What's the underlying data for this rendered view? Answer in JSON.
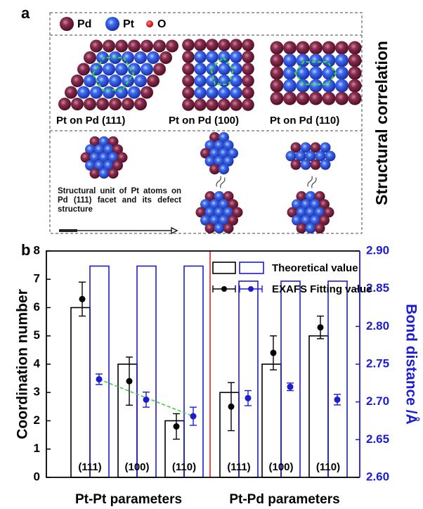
{
  "panel_a": {
    "label": "a",
    "legend": [
      "Pd",
      "Pt",
      "O"
    ],
    "facets": [
      "Pt on Pd (111)",
      "Pt on Pd (100)",
      "Pt on Pd (110)"
    ],
    "note": "Structural unit of Pt atoms on Pd (111) facet and its defect structure",
    "side_title": "Structural correlation"
  },
  "chart_data": {
    "type": "bar",
    "panel_label": "b",
    "categories": [
      "(111)",
      "(100)",
      "(110)",
      "(111)",
      "(100)",
      "(110)"
    ],
    "groups": [
      "Pt-Pt parameters",
      "Pt-Pd parameters"
    ],
    "y_label": "Coordination number",
    "y2_label": "Bond distance /Å",
    "ylim": [
      0,
      8
    ],
    "yticks": [
      0,
      1,
      2,
      3,
      4,
      5,
      6,
      7,
      8
    ],
    "y2lim": [
      2.6,
      2.9
    ],
    "y2ticks": [
      {
        "value": 2.6,
        "label": "2.60"
      },
      {
        "value": 2.65,
        "label": "2.65"
      },
      {
        "value": 2.7,
        "label": "2.70"
      },
      {
        "value": 2.75,
        "label": "2.75"
      },
      {
        "value": 2.8,
        "label": "2.80"
      },
      {
        "value": 2.85,
        "label": "2.85"
      },
      {
        "value": 2.9,
        "label": "2.90"
      }
    ],
    "legend_position": "upper right",
    "series": [
      {
        "name": "Theoretical value",
        "color": "#000000",
        "y2_color": "#1c1cd0",
        "values": [
          6,
          4,
          2,
          3,
          4,
          5
        ],
        "y2_values": [
          2.88,
          2.88,
          2.88,
          2.86,
          2.86,
          2.86
        ]
      },
      {
        "name": "EXAFS Fitting value",
        "color": "#000000",
        "y2_color": "#1c1cd0",
        "values": [
          6.3,
          3.4,
          1.8,
          2.5,
          4.4,
          5.3
        ],
        "errors": [
          0.6,
          0.85,
          0.45,
          0.85,
          0.6,
          0.4
        ],
        "y2_values": [
          2.73,
          2.703,
          2.681,
          2.705,
          2.72,
          2.703
        ],
        "y2_errors": [
          0.007,
          0.01,
          0.012,
          0.01,
          0.005,
          0.007
        ]
      }
    ]
  }
}
